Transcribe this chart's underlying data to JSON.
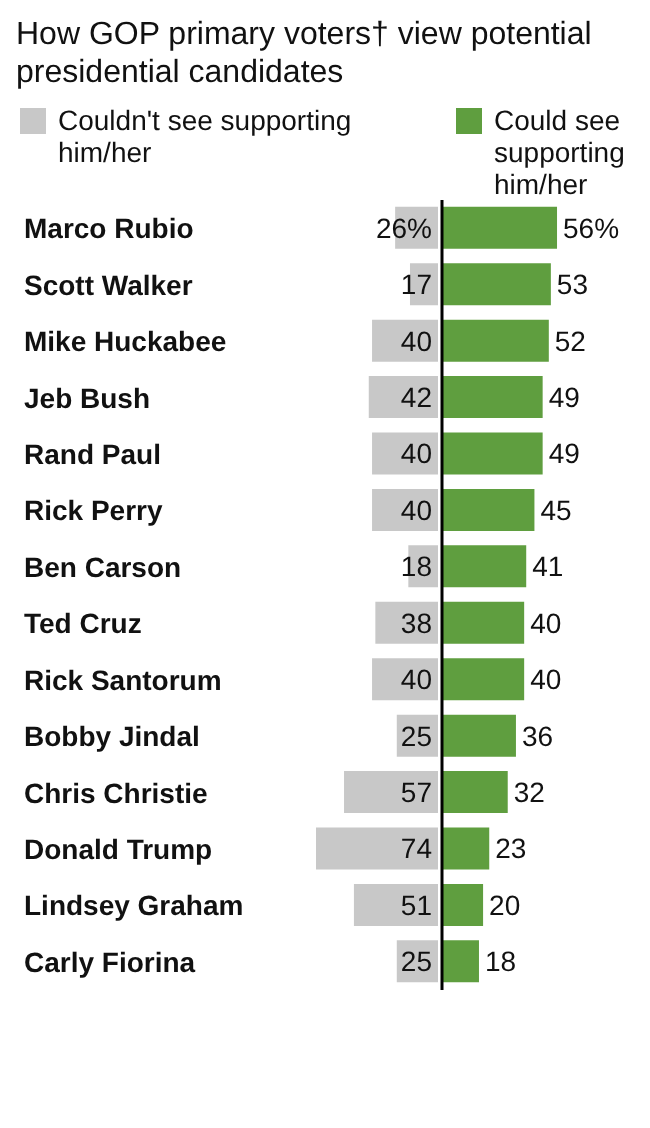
{
  "chart_data": [
    {
      "type": "bar",
      "orientation": "horizontal",
      "title": "How GOP primary voters† view potential presidential candidates",
      "categories": [
        "Marco Rubio",
        "Scott Walker",
        "Mike Huckabee",
        "Jeb Bush",
        "Rand Paul",
        "Rick Perry",
        "Ben Carson",
        "Ted Cruz",
        "Rick Santorum",
        "Bobby Jindal",
        "Chris Christie",
        "Donald Trump",
        "Lindsey Graham",
        "Carly Fiorina"
      ],
      "series": [
        {
          "name": "Couldn't see supporting him/her",
          "color": "#c8c8c8",
          "values": [
            26,
            17,
            40,
            42,
            40,
            40,
            18,
            38,
            40,
            25,
            57,
            74,
            51,
            25
          ],
          "value_labels": [
            "26%",
            "17",
            "40",
            "42",
            "40",
            "40",
            "18",
            "38",
            "40",
            "25",
            "57",
            "74",
            "51",
            "25"
          ]
        }
      ],
      "legend": "top",
      "tick_labels": "y",
      "grid": false
    },
    {
      "type": "bar",
      "orientation": "horizontal",
      "categories": [
        null,
        null,
        null,
        null,
        null,
        null,
        null,
        null,
        null,
        null,
        null,
        null,
        null,
        null
      ],
      "series": [
        {
          "name": "Could see supporting him/her",
          "color": "#5f9e3f",
          "values": [
            56,
            53,
            52,
            49,
            49,
            45,
            41,
            40,
            40,
            36,
            32,
            23,
            20,
            18
          ],
          "value_labels": [
            "56%",
            "53",
            "52",
            "49",
            "49",
            "45",
            "41",
            "40",
            "40",
            "36",
            "32",
            "23",
            "20",
            "18"
          ]
        }
      ],
      "legend": "top",
      "tick_labels": false,
      "grid": false
    }
  ]
}
